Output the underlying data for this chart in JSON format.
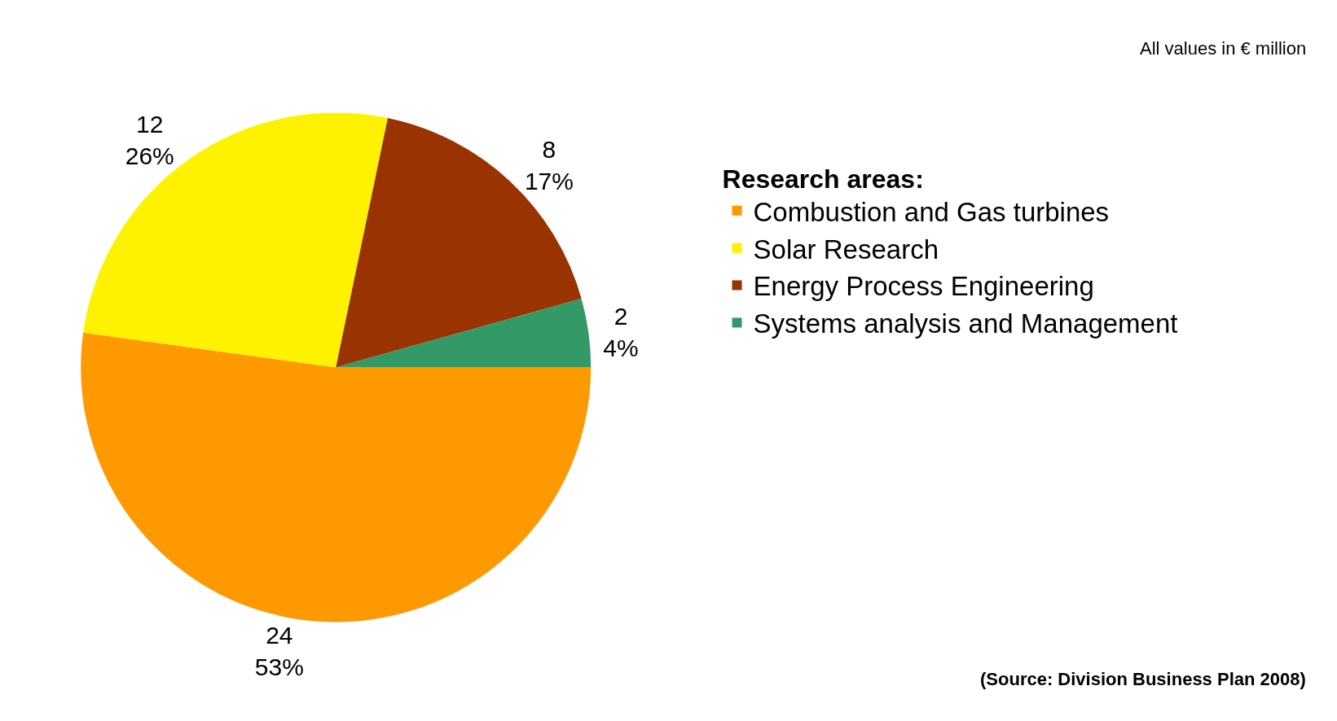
{
  "chart_data": {
    "type": "pie",
    "categories": [
      "Combustion and Gas turbines",
      "Solar Research",
      "Energy Process Engineering",
      "Systems analysis and Management"
    ],
    "values": [
      24,
      12,
      8,
      2
    ],
    "colors": [
      "#ff9900",
      "#fff200",
      "#993300",
      "#339966"
    ],
    "value_labels": [
      "24\n53%",
      "12\n26%",
      "8\n17%",
      "2\n4%"
    ],
    "legend_title": "Research areas:",
    "legend": "right",
    "annotations": [
      "All values in € million",
      "(Source: Division Business Plan 2008)"
    ]
  }
}
